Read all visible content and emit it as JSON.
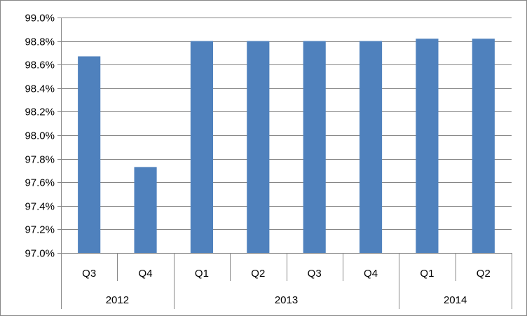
{
  "chart_data": {
    "type": "bar",
    "title": "",
    "xlabel": "",
    "ylabel": "",
    "ylim": [
      97.0,
      99.0
    ],
    "ytick_step": 0.2,
    "ytick_labels": [
      "97.0%",
      "97.2%",
      "97.4%",
      "97.6%",
      "97.8%",
      "98.0%",
      "98.2%",
      "98.4%",
      "98.6%",
      "98.8%",
      "99.0%"
    ],
    "grid": "horizontal",
    "legend": "none",
    "bar_color": "#4F81BD",
    "categories": [
      "Q3",
      "Q4",
      "Q1",
      "Q2",
      "Q3",
      "Q4",
      "Q1",
      "Q2"
    ],
    "groups": [
      {
        "label": "2012",
        "count": 2
      },
      {
        "label": "2013",
        "count": 4
      },
      {
        "label": "2014",
        "count": 2
      }
    ],
    "values": [
      98.67,
      97.73,
      98.8,
      98.8,
      98.8,
      98.8,
      98.82,
      98.82
    ]
  }
}
